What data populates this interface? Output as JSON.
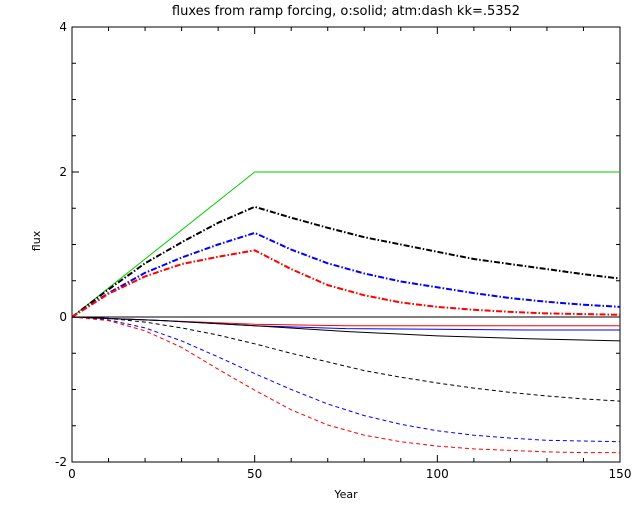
{
  "chart_data": {
    "type": "line",
    "title": "fluxes from ramp forcing, o:solid; atm:dash kk=.5352",
    "xlabel": "Year",
    "ylabel": "flux",
    "xlim": [
      0,
      150
    ],
    "ylim": [
      -2,
      4
    ],
    "xticks": [
      0,
      50,
      100,
      150
    ],
    "yticks": [
      -2,
      0,
      2,
      4
    ],
    "grid": false,
    "series": [
      {
        "color": "#00cc00",
        "style": "solid",
        "x": [
          0,
          50,
          150
        ],
        "y": [
          0,
          2.0,
          2.0
        ]
      },
      {
        "color": "#000000",
        "style": "dashdot",
        "x": [
          0,
          10,
          20,
          30,
          40,
          50,
          60,
          70,
          80,
          90,
          100,
          110,
          120,
          130,
          140,
          150
        ],
        "y": [
          0,
          0.38,
          0.74,
          1.03,
          1.3,
          1.52,
          1.37,
          1.23,
          1.1,
          1.0,
          0.9,
          0.8,
          0.73,
          0.66,
          0.59,
          0.53
        ]
      },
      {
        "color": "#0000ff",
        "style": "dashdot",
        "x": [
          0,
          10,
          20,
          30,
          40,
          50,
          60,
          70,
          80,
          90,
          100,
          110,
          120,
          130,
          140,
          150
        ],
        "y": [
          0,
          0.33,
          0.61,
          0.82,
          1.0,
          1.16,
          0.93,
          0.74,
          0.6,
          0.49,
          0.41,
          0.33,
          0.26,
          0.21,
          0.17,
          0.14
        ]
      },
      {
        "color": "#ff0000",
        "style": "dashdot",
        "x": [
          0,
          10,
          20,
          30,
          40,
          50,
          60,
          70,
          80,
          90,
          100,
          110,
          120,
          130,
          140,
          150
        ],
        "y": [
          0,
          0.32,
          0.56,
          0.73,
          0.83,
          0.92,
          0.66,
          0.44,
          0.3,
          0.2,
          0.14,
          0.1,
          0.07,
          0.05,
          0.04,
          0.03
        ]
      },
      {
        "color": "#ff0000",
        "style": "solid",
        "x": [
          0,
          25,
          50,
          75,
          100,
          125,
          150
        ],
        "y": [
          0,
          -0.05,
          -0.1,
          -0.12,
          -0.12,
          -0.12,
          -0.12
        ]
      },
      {
        "color": "#0000ff",
        "style": "solid",
        "x": [
          0,
          25,
          50,
          75,
          100,
          125,
          150
        ],
        "y": [
          0,
          -0.05,
          -0.12,
          -0.16,
          -0.17,
          -0.18,
          -0.18
        ]
      },
      {
        "color": "#000000",
        "style": "solid",
        "x": [
          0,
          25,
          50,
          75,
          100,
          125,
          150
        ],
        "y": [
          0,
          -0.05,
          -0.12,
          -0.2,
          -0.26,
          -0.3,
          -0.33
        ]
      },
      {
        "color": "#000000",
        "style": "dashed",
        "x": [
          0,
          10,
          20,
          30,
          40,
          50,
          60,
          70,
          80,
          90,
          100,
          110,
          120,
          130,
          140,
          150
        ],
        "y": [
          0,
          -0.02,
          -0.07,
          -0.15,
          -0.25,
          -0.37,
          -0.5,
          -0.62,
          -0.74,
          -0.83,
          -0.91,
          -0.98,
          -1.04,
          -1.09,
          -1.13,
          -1.16
        ]
      },
      {
        "color": "#0000ff",
        "style": "dashed",
        "x": [
          0,
          10,
          20,
          30,
          40,
          50,
          60,
          70,
          80,
          90,
          100,
          110,
          120,
          130,
          140,
          150
        ],
        "y": [
          0,
          -0.04,
          -0.15,
          -0.33,
          -0.55,
          -0.78,
          -1.0,
          -1.2,
          -1.36,
          -1.48,
          -1.57,
          -1.63,
          -1.67,
          -1.7,
          -1.71,
          -1.72
        ]
      },
      {
        "color": "#ff0000",
        "style": "dashed",
        "x": [
          0,
          10,
          20,
          30,
          40,
          50,
          60,
          70,
          80,
          90,
          100,
          110,
          120,
          130,
          140,
          150
        ],
        "y": [
          0,
          -0.05,
          -0.19,
          -0.42,
          -0.72,
          -1.01,
          -1.28,
          -1.49,
          -1.63,
          -1.72,
          -1.78,
          -1.82,
          -1.84,
          -1.86,
          -1.87,
          -1.87
        ]
      },
      {
        "color": "#000000",
        "style": "solid",
        "x": [
          0,
          150
        ],
        "y": [
          0,
          0
        ]
      }
    ]
  }
}
